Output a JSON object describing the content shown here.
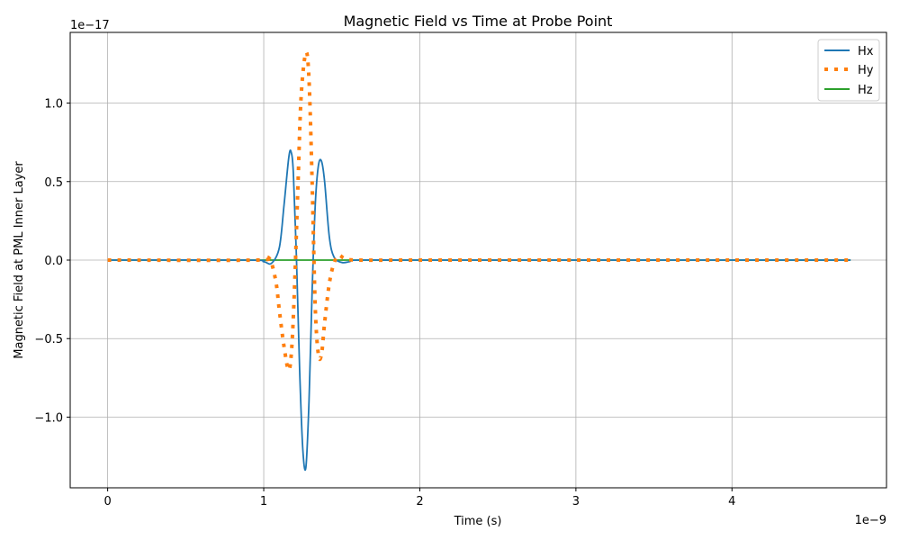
{
  "chart_data": {
    "type": "line",
    "title": "Magnetic Field vs Time at Probe Point",
    "xlabel": "Time (s)",
    "ylabel": "Magnetic Field at PML Inner Layer",
    "x_exponent_label": "1e−9",
    "y_exponent_label": "1e−17",
    "xlim": [
      -0.24,
      4.99
    ],
    "ylim": [
      -1.45,
      1.45
    ],
    "x_ticks": [
      0,
      1,
      2,
      3,
      4
    ],
    "x_tick_labels": [
      "0",
      "1",
      "2",
      "3",
      "4"
    ],
    "y_ticks": [
      -1.0,
      -0.5,
      0.0,
      0.5,
      1.0
    ],
    "y_tick_labels": [
      "−1.0",
      "−0.5",
      "0.0",
      "0.5",
      "1.0"
    ],
    "grid": true,
    "legend_position": "top-right",
    "series": [
      {
        "name": "Hx",
        "color": "#1f77b4",
        "style": "solid",
        "x": [
          0,
          0.9,
          1.0,
          1.05,
          1.1,
          1.13,
          1.16,
          1.175,
          1.19,
          1.21,
          1.23,
          1.25,
          1.27,
          1.29,
          1.31,
          1.33,
          1.35,
          1.37,
          1.39,
          1.42,
          1.45,
          1.5,
          1.55,
          1.6,
          2.0,
          3.0,
          4.0,
          4.76
        ],
        "y": [
          0,
          0,
          -0.01,
          -0.02,
          0.08,
          0.35,
          0.65,
          0.69,
          0.55,
          0.0,
          -0.7,
          -1.2,
          -1.32,
          -0.9,
          -0.2,
          0.35,
          0.6,
          0.63,
          0.5,
          0.15,
          0.02,
          -0.015,
          -0.01,
          0,
          0,
          0,
          0,
          0
        ]
      },
      {
        "name": "Hy",
        "color": "#ff7f0e",
        "style": "dotted",
        "x": [
          0,
          0.95,
          1.02,
          1.05,
          1.08,
          1.1,
          1.13,
          1.16,
          1.18,
          1.2,
          1.22,
          1.24,
          1.27,
          1.29,
          1.31,
          1.33,
          1.35,
          1.37,
          1.39,
          1.42,
          1.45,
          1.48,
          1.52,
          1.6,
          2.0,
          3.0,
          4.0,
          4.76
        ],
        "y": [
          0,
          0,
          0.02,
          -0.02,
          -0.15,
          -0.32,
          -0.55,
          -0.7,
          -0.55,
          -0.1,
          0.5,
          1.05,
          1.32,
          1.15,
          0.5,
          -0.3,
          -0.6,
          -0.6,
          -0.4,
          -0.15,
          -0.02,
          0.03,
          0.01,
          0,
          0,
          0,
          0,
          0
        ]
      },
      {
        "name": "Hz",
        "color": "#2ca02c",
        "style": "solid",
        "x": [
          0,
          4.76
        ],
        "y": [
          0,
          0
        ]
      }
    ]
  }
}
